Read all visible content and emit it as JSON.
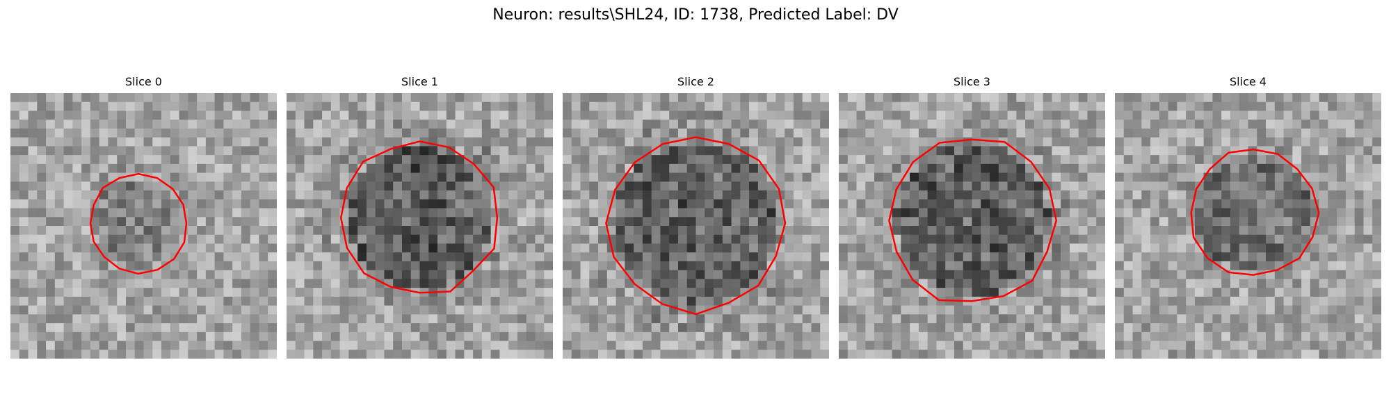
{
  "figure": {
    "title": "Neuron: results\\SHL24, ID: 1738, Predicted Label: DV"
  },
  "panels": [
    {
      "title": "Slice 0",
      "blob_radius": 0.17,
      "blob_cx": 0.48,
      "blob_cy": 0.49,
      "darkness": 0.35,
      "seed": 11
    },
    {
      "title": "Slice 1",
      "blob_radius": 0.27,
      "blob_cx": 0.5,
      "blob_cy": 0.47,
      "darkness": 0.75,
      "seed": 23
    },
    {
      "title": "Slice 2",
      "blob_radius": 0.31,
      "blob_cx": 0.5,
      "blob_cy": 0.49,
      "darkness": 0.7,
      "seed": 37
    },
    {
      "title": "Slice 3",
      "blob_radius": 0.29,
      "blob_cx": 0.5,
      "blob_cy": 0.48,
      "darkness": 0.72,
      "seed": 41
    },
    {
      "title": "Slice 4",
      "blob_radius": 0.22,
      "blob_cx": 0.52,
      "blob_cy": 0.45,
      "darkness": 0.55,
      "seed": 53
    }
  ],
  "colors": {
    "contour": "#ff0000",
    "background": "#ffffff"
  }
}
